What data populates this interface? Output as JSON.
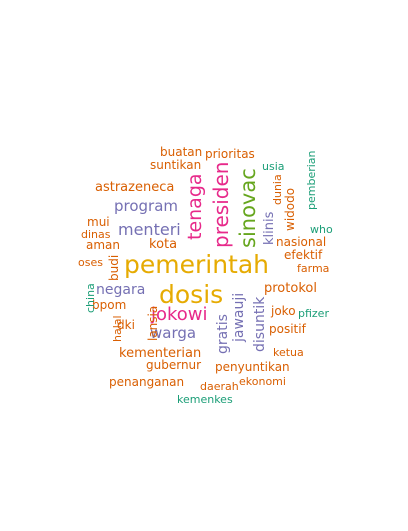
{
  "words": [
    {
      "text": "pemerintah",
      "color": "#e6ab02"
    },
    {
      "text": "dosis",
      "color": "#e6ab02"
    },
    {
      "text": "sinovac",
      "color": "#66a61e"
    },
    {
      "text": "presiden",
      "color": "#e7298a"
    },
    {
      "text": "tenaga",
      "color": "#e7298a"
    },
    {
      "text": "jokowi",
      "color": "#e7298a"
    },
    {
      "text": "menteri",
      "color": "#7570b3"
    },
    {
      "text": "program",
      "color": "#7570b3"
    },
    {
      "text": "warga",
      "color": "#7570b3"
    },
    {
      "text": "negara",
      "color": "#7570b3"
    },
    {
      "text": "gratis",
      "color": "#7570b3"
    },
    {
      "text": "jawauji",
      "color": "#7570b3"
    },
    {
      "text": "disuntik",
      "color": "#7570b3"
    },
    {
      "text": "klinis",
      "color": "#7570b3"
    },
    {
      "text": "astrazeneca",
      "color": "#d95f02"
    },
    {
      "text": "kota",
      "color": "#d95f02"
    },
    {
      "text": "protokol",
      "color": "#d95f02"
    },
    {
      "text": "kementerian",
      "color": "#d95f02"
    },
    {
      "text": "prioritas",
      "color": "#d95f02"
    },
    {
      "text": "buatan",
      "color": "#d95f02"
    },
    {
      "text": "suntikan",
      "color": "#d95f02"
    },
    {
      "text": "aman",
      "color": "#d95f02"
    },
    {
      "text": "dinas",
      "color": "#d95f02"
    },
    {
      "text": "mui",
      "color": "#d95f02"
    },
    {
      "text": "oses",
      "color": "#d95f02"
    },
    {
      "text": "budi",
      "color": "#d95f02"
    },
    {
      "text": "bpom",
      "color": "#d95f02"
    },
    {
      "text": "halal",
      "color": "#d95f02"
    },
    {
      "text": "dki",
      "color": "#d95f02"
    },
    {
      "text": "lansia",
      "color": "#d95f02"
    },
    {
      "text": "gubernur",
      "color": "#d95f02"
    },
    {
      "text": "penanganan",
      "color": "#d95f02"
    },
    {
      "text": "penyuntikan",
      "color": "#d95f02"
    },
    {
      "text": "daerah",
      "color": "#d95f02"
    },
    {
      "text": "ekonomi",
      "color": "#d95f02"
    },
    {
      "text": "ketua",
      "color": "#d95f02"
    },
    {
      "text": "positif",
      "color": "#d95f02"
    },
    {
      "text": "joko",
      "color": "#d95f02"
    },
    {
      "text": "farma",
      "color": "#d95f02"
    },
    {
      "text": "efektif",
      "color": "#d95f02"
    },
    {
      "text": "nasional",
      "color": "#d95f02"
    },
    {
      "text": "widodo",
      "color": "#d95f02"
    },
    {
      "text": "dunia",
      "color": "#d95f02"
    },
    {
      "text": "usia",
      "color": "#1b9e77"
    },
    {
      "text": "pemberian",
      "color": "#1b9e77"
    },
    {
      "text": "who",
      "color": "#1b9e77"
    },
    {
      "text": "pfizer",
      "color": "#1b9e77"
    },
    {
      "text": "china",
      "color": "#1b9e77"
    },
    {
      "text": "kemenkes",
      "color": "#1b9e77"
    }
  ]
}
